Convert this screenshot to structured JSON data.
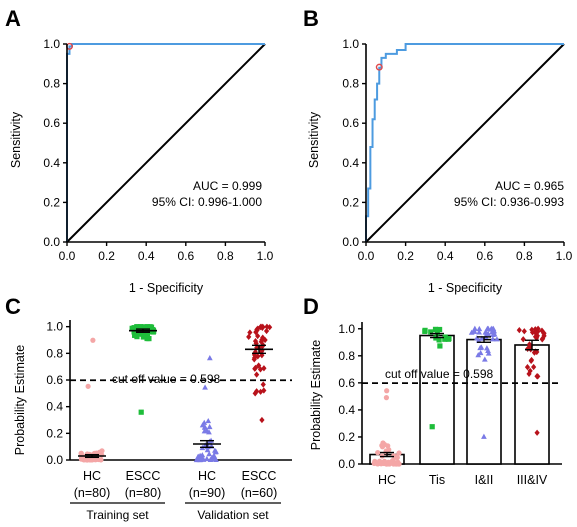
{
  "chart_data": [
    {
      "panel": "A",
      "type": "line",
      "xlabel": "1 - Specificity",
      "ylabel": "Sensitivity",
      "xlim": [
        0,
        1
      ],
      "ylim": [
        0,
        1
      ],
      "xticks": [
        "0.0",
        "0.2",
        "0.4",
        "0.6",
        "0.8",
        "1.0"
      ],
      "yticks": [
        "0.0",
        "0.2",
        "0.4",
        "0.6",
        "0.8",
        "1.0"
      ],
      "annotations": [
        "AUC = 0.999",
        "95% CI: 0.996-1.000"
      ],
      "curve_color": "#4d9be0",
      "reference_color": "#000000",
      "cutoff_marker_color": "#e0484a",
      "roc": [
        [
          0,
          0
        ],
        [
          0,
          0.95
        ],
        [
          0.0125,
          0.95
        ],
        [
          0.0125,
          0.988
        ],
        [
          0.025,
          0.988
        ],
        [
          0.025,
          1.0
        ],
        [
          1,
          1
        ]
      ],
      "reference_line": [
        [
          0,
          0
        ],
        [
          1,
          1
        ]
      ],
      "cutoff_point": [
        0.0125,
        0.988
      ]
    },
    {
      "panel": "B",
      "type": "line",
      "xlabel": "1 - Specificity",
      "ylabel": "Sensitivity",
      "xlim": [
        0,
        1
      ],
      "ylim": [
        0,
        1
      ],
      "xticks": [
        "0.0",
        "0.2",
        "0.4",
        "0.6",
        "0.8",
        "1.0"
      ],
      "yticks": [
        "0.0",
        "0.2",
        "0.4",
        "0.6",
        "0.8",
        "1.0"
      ],
      "annotations": [
        "AUC = 0.965",
        "95% CI:  0.936-0.993"
      ],
      "curve_color": "#4d9be0",
      "reference_color": "#000000",
      "cutoff_marker_color": "#e0484a",
      "roc": [
        [
          0,
          0
        ],
        [
          0,
          0.13
        ],
        [
          0.011,
          0.13
        ],
        [
          0.011,
          0.27
        ],
        [
          0.022,
          0.27
        ],
        [
          0.022,
          0.48
        ],
        [
          0.033,
          0.48
        ],
        [
          0.033,
          0.62
        ],
        [
          0.044,
          0.62
        ],
        [
          0.044,
          0.72
        ],
        [
          0.056,
          0.72
        ],
        [
          0.056,
          0.8
        ],
        [
          0.067,
          0.8
        ],
        [
          0.067,
          0.88
        ],
        [
          0.078,
          0.88
        ],
        [
          0.078,
          0.93
        ],
        [
          0.1,
          0.93
        ],
        [
          0.1,
          0.95
        ],
        [
          0.156,
          0.95
        ],
        [
          0.156,
          0.97
        ],
        [
          0.2,
          0.97
        ],
        [
          0.2,
          1.0
        ],
        [
          1,
          1
        ]
      ],
      "reference_line": [
        [
          0,
          0
        ],
        [
          1,
          1
        ]
      ],
      "cutoff_point": [
        0.067,
        0.883
      ]
    },
    {
      "panel": "C",
      "type": "scatter",
      "ylabel": "Probability Estimate",
      "ylim": [
        0,
        1.05
      ],
      "yticks": [
        "0.0",
        "0.2",
        "0.4",
        "0.6",
        "0.8",
        "1.0"
      ],
      "cutoff_value": 0.598,
      "cutoff_label": "cut off value = 0.598",
      "categories": [
        {
          "label": "HC",
          "n_label": "(n=80)",
          "color": "#f4a6a6",
          "marker": "circle",
          "mean": 0.03,
          "sem": 0.01
        },
        {
          "label": "ESCC",
          "n_label": "(n=80)",
          "color": "#1ebd3a",
          "marker": "square",
          "mean": 0.97,
          "sem": 0.012
        },
        {
          "label": "HC",
          "n_label": "(n=90)",
          "color": "#7a7ae6",
          "marker": "triangle",
          "mean": 0.12,
          "sem": 0.025
        },
        {
          "label": "ESCC",
          "n_label": "(n=60)",
          "color": "#b8121b",
          "marker": "diamond",
          "mean": 0.83,
          "sem": 0.03
        }
      ],
      "groups": [
        {
          "label": "Training set",
          "span": [
            0,
            1
          ]
        },
        {
          "label": "Validation set",
          "span": [
            2,
            3
          ]
        }
      ]
    },
    {
      "panel": "D",
      "type": "bar",
      "ylabel": "Probability Estimate",
      "ylim": [
        0,
        1.05
      ],
      "yticks": [
        "0.0",
        "0.2",
        "0.4",
        "0.6",
        "0.8",
        "1.0"
      ],
      "cutoff_value": 0.598,
      "cutoff_label": "cut off value = 0.598",
      "categories": [
        {
          "label": "HC",
          "color": "#f4a6a6",
          "marker": "circle",
          "mean": 0.07,
          "sem": 0.015
        },
        {
          "label": "Tis",
          "color": "#1ebd3a",
          "marker": "square",
          "mean": 0.95,
          "sem": 0.015
        },
        {
          "label": "I&II",
          "color": "#7a7ae6",
          "marker": "triangle",
          "mean": 0.92,
          "sem": 0.02
        },
        {
          "label": "III&IV",
          "color": "#b8121b",
          "marker": "diamond",
          "mean": 0.88,
          "sem": 0.035
        }
      ]
    }
  ]
}
